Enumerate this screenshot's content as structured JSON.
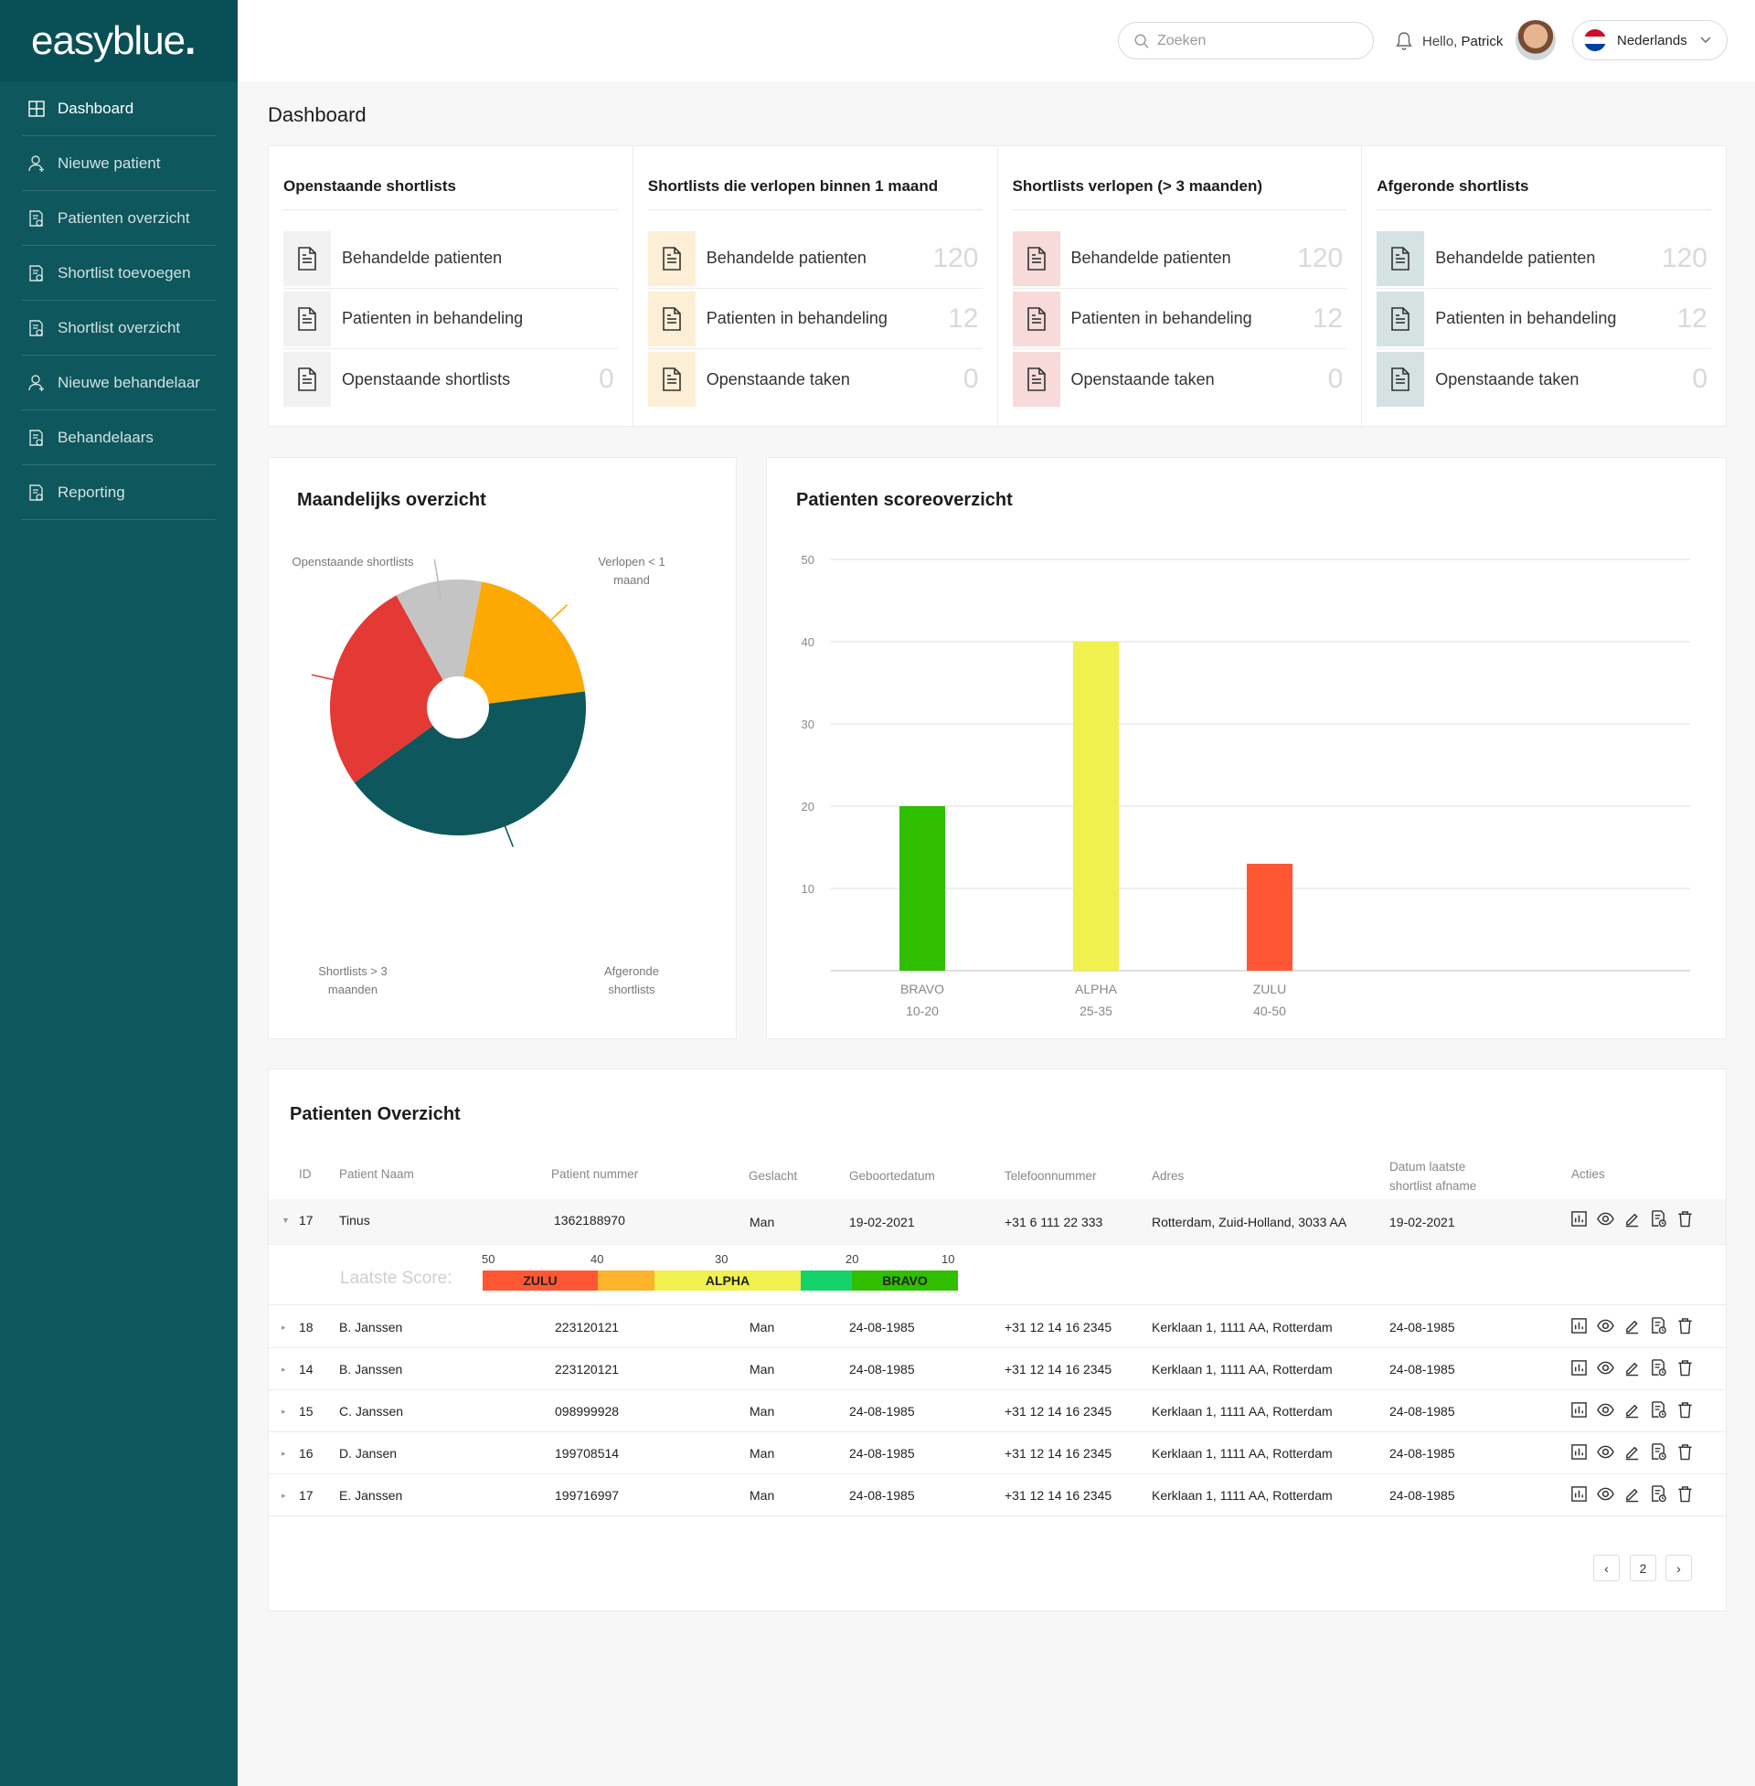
{
  "app": {
    "logo": "easyblue",
    "logo_dot": "."
  },
  "sidebar": {
    "items": [
      {
        "label": "Dashboard",
        "icon": "grid-icon"
      },
      {
        "label": "Nieuwe patient",
        "icon": "user-icon"
      },
      {
        "label": "Patienten overzicht",
        "icon": "document-icon"
      },
      {
        "label": "Shortlist toevoegen",
        "icon": "document-icon"
      },
      {
        "label": "Shortlist overzicht",
        "icon": "document-icon"
      },
      {
        "label": "Nieuwe behandelaar",
        "icon": "user-icon"
      },
      {
        "label": "Behandelaars",
        "icon": "document-icon"
      },
      {
        "label": "Reporting",
        "icon": "document-icon"
      }
    ]
  },
  "header": {
    "search_placeholder": "Zoeken",
    "hello": "Hello,",
    "user_name": "Patrick",
    "language": "Nederlands"
  },
  "page": {
    "title": "Dashboard"
  },
  "stats": [
    {
      "title": "Openstaande shortlists",
      "tint": "#f2f2f2",
      "rows": [
        {
          "label": "Behandelde patienten",
          "value": ""
        },
        {
          "label": "Patienten in behandeling",
          "value": ""
        },
        {
          "label": "Openstaande shortlists",
          "value": "0"
        }
      ]
    },
    {
      "title": "Shortlists die verlopen binnen 1 maand",
      "tint": "#fdefd6",
      "rows": [
        {
          "label": "Behandelde patienten",
          "value": "120"
        },
        {
          "label": "Patienten in behandeling",
          "value": "12"
        },
        {
          "label": "Openstaande taken",
          "value": "0"
        }
      ]
    },
    {
      "title": "Shortlists verlopen (> 3 maanden)",
      "tint": "#f8dada",
      "rows": [
        {
          "label": "Behandelde patienten",
          "value": "120"
        },
        {
          "label": "Patienten in behandeling",
          "value": "12"
        },
        {
          "label": "Openstaande taken",
          "value": "0"
        }
      ]
    },
    {
      "title": "Afgeronde shortlists",
      "tint": "#d4e2e2",
      "rows": [
        {
          "label": "Behandelde patienten",
          "value": "120"
        },
        {
          "label": "Patienten in behandeling",
          "value": "12"
        },
        {
          "label": "Openstaande taken",
          "value": "0"
        }
      ]
    }
  ],
  "pie_panel": {
    "title": "Maandelijks overzicht",
    "labels": {
      "open": "Openstaande shortlists",
      "expiring": "Verlopen < 1 maand",
      "expired": "Shortlists > 3 maanden",
      "done": "Afgeronde shortlists"
    }
  },
  "chart_data": [
    {
      "type": "pie",
      "title": "Maandelijks overzicht",
      "slices": [
        {
          "name": "Openstaande shortlists",
          "value": 11,
          "color": "#c4c4c4"
        },
        {
          "name": "Verlopen < 1 maand",
          "value": 20,
          "color": "#fda902"
        },
        {
          "name": "Afgeronde shortlists",
          "value": 42,
          "color": "#0d575d"
        },
        {
          "name": "Shortlists > 3 maanden",
          "value": 27,
          "color": "#e53935"
        }
      ]
    },
    {
      "type": "bar",
      "title": "Patienten scoreoverzicht",
      "categories": [
        "BRAVO",
        "ALPHA",
        "ZULU"
      ],
      "category_ranges": [
        "10-20",
        "25-35",
        "40-50"
      ],
      "values": [
        20,
        40,
        13
      ],
      "colors": [
        "#2fbe00",
        "#f0f04e",
        "#ff5733"
      ],
      "ylim": [
        0,
        50
      ],
      "yticks": [
        10,
        20,
        30,
        40,
        50
      ],
      "grid": true
    }
  ],
  "table": {
    "title": "Patienten Overzicht",
    "headers": {
      "id": "ID",
      "name": "Patient Naam",
      "number": "Patient nummer",
      "gender": "Geslacht",
      "birth": "Geboortedatum",
      "phone": "Telefoonnummer",
      "address": "Adres",
      "last1": "Datum laatste",
      "last2": "shortlist afname",
      "actions": "Acties"
    },
    "expanded_row": {
      "id": "17",
      "name": "Tinus",
      "number": "1362188970",
      "gender": "Man",
      "birth": "19-02-2021",
      "phone": "+31 6 111 22 333",
      "address": "Rotterdam, Zuid-Holland, 3033 AA",
      "last": "19-02-2021"
    },
    "score": {
      "label": "Laatste Score:",
      "ticks": [
        "50",
        "40",
        "30",
        "20",
        "10"
      ],
      "segments": [
        {
          "label": "ZULU",
          "color": "#ff5733"
        },
        {
          "label": "",
          "color": "#fdb32c"
        },
        {
          "label": "ALPHA",
          "color": "#f0f04e"
        },
        {
          "label": "",
          "color": "#16d26a"
        },
        {
          "label": "BRAVO",
          "color": "#2fbe00"
        }
      ]
    },
    "rows": [
      {
        "id": "18",
        "name": "B. Janssen",
        "number": "223120121",
        "gender": "Man",
        "birth": "24-08-1985",
        "phone": "+31 12 14 16 2345",
        "address": "Kerklaan 1, 1111 AA, Rotterdam",
        "last": "24-08-1985"
      },
      {
        "id": "14",
        "name": "B. Janssen",
        "number": "223120121",
        "gender": "Man",
        "birth": "24-08-1985",
        "phone": "+31 12 14 16 2345",
        "address": "Kerklaan 1, 1111 AA, Rotterdam",
        "last": "24-08-1985"
      },
      {
        "id": "15",
        "name": "C. Janssen",
        "number": "098999928",
        "gender": "Man",
        "birth": "24-08-1985",
        "phone": "+31 12 14 16 2345",
        "address": "Kerklaan 1, 1111 AA, Rotterdam",
        "last": "24-08-1985"
      },
      {
        "id": "16",
        "name": "D. Jansen",
        "number": "199708514",
        "gender": "Man",
        "birth": "24-08-1985",
        "phone": "+31 12 14 16 2345",
        "address": "Kerklaan 1, 1111 AA, Rotterdam",
        "last": "24-08-1985"
      },
      {
        "id": "17",
        "name": "E. Janssen",
        "number": "199716997",
        "gender": "Man",
        "birth": "24-08-1985",
        "phone": "+31 12 14 16 2345",
        "address": "Kerklaan 1, 1111 AA, Rotterdam",
        "last": "24-08-1985"
      }
    ],
    "pagination": {
      "prev": "‹",
      "current": "2",
      "next": "›"
    }
  }
}
